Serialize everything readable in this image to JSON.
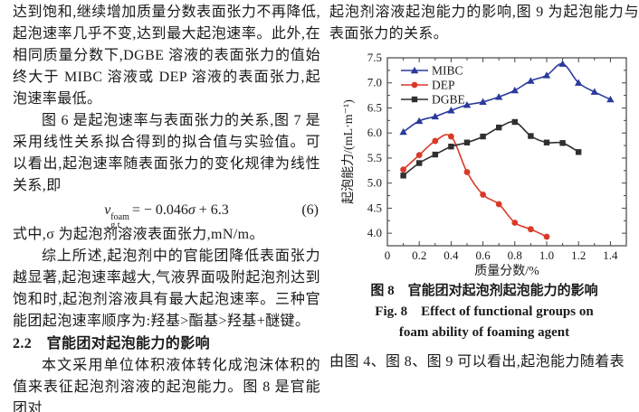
{
  "left": {
    "para1": "达到饱和,继续增加质量分数表面张力不再降低,起泡速率几乎不变,达到最大起泡速率。此外,在相同质量分数下,DGBE 溶液的表面张力的值始终大于 MIBC 溶液或 DEP 溶液的表面张力,起泡速率最低。",
    "para2": "图 6 是起泡速率与表面张力的关系,图 7 是采用线性关系拟合得到的拟合值与实验值。可以看出,起泡速率随表面张力的变化规律为线性关系,即",
    "eq": {
      "base": "v",
      "sup": "foam",
      "sub": "g,t",
      "mid": "= − 0.046",
      "sigma": "σ",
      "tail": " + 6.3",
      "number": "(6)"
    },
    "para3": "式中,σ 为起泡剂溶液表面张力,mN/m。",
    "para4": "综上所述,起泡剂中的官能团降低表面张力越显著,起泡速率越大,气液界面吸附起泡剂达到饱和时,起泡剂溶液具有最大起泡速率。三种官能团起泡速率顺序为:羟基>酯基>羟基+醚键。",
    "heading": "2.2　官能团对起泡能力的影响",
    "para5": "本文采用单位体积液体转化成泡沫体积的值来表征起泡剂溶液的起泡能力。图 8 是官能团对"
  },
  "right": {
    "para_top": "起泡剂溶液起泡能力的影响,图 9 为起泡能力与表面张力的关系。",
    "caption_cn": "图 8　官能团对起泡剂起泡能力的影响",
    "caption_en1": "Fig. 8　Effect of functional groups on",
    "caption_en2": "foam ability of foaming agent",
    "para_bottom": "由图 4、图 8、图 9 可以看出,起泡能力随着表"
  },
  "chart_data": {
    "type": "line",
    "title": "",
    "xlabel": "质量分数/%",
    "ylabel": "起泡能力/(mL·m⁻¹)",
    "xlim": [
      0,
      1.5
    ],
    "ylim": [
      3.75,
      7.5
    ],
    "x_ticks": [
      0,
      0.2,
      0.4,
      0.6,
      0.8,
      1.0,
      1.2,
      1.4
    ],
    "y_ticks": [
      4.0,
      4.5,
      5.0,
      5.5,
      6.0,
      6.5,
      7.0,
      7.5
    ],
    "x_minor_step": 0.1,
    "y_minor_step": 0.25,
    "grid": false,
    "legend_position": "top-left",
    "axis_color": "#444444",
    "series": [
      {
        "name": "MIBC",
        "color": "#2b3a9d",
        "marker": "triangle",
        "x": [
          0.1,
          0.2,
          0.3,
          0.4,
          0.5,
          0.6,
          0.7,
          0.8,
          0.9,
          1.0,
          1.1,
          1.2,
          1.3,
          1.4
        ],
        "y": [
          6.02,
          6.24,
          6.33,
          6.45,
          6.56,
          6.62,
          6.72,
          6.85,
          7.04,
          7.15,
          7.38,
          7.0,
          6.82,
          6.67
        ]
      },
      {
        "name": "DEP",
        "color": "#d93a28",
        "marker": "circle",
        "x": [
          0.1,
          0.2,
          0.3,
          0.4,
          0.5,
          0.6,
          0.7,
          0.8,
          0.9,
          1.0
        ],
        "y": [
          5.27,
          5.56,
          5.84,
          5.93,
          5.22,
          4.77,
          4.58,
          4.21,
          4.08,
          3.93
        ]
      },
      {
        "name": "DGBE",
        "color": "#2f2f2f",
        "marker": "square",
        "x": [
          0.1,
          0.2,
          0.3,
          0.4,
          0.5,
          0.6,
          0.7,
          0.8,
          0.9,
          1.0,
          1.1,
          1.2
        ],
        "y": [
          5.15,
          5.4,
          5.57,
          5.73,
          5.81,
          5.93,
          6.11,
          6.22,
          5.94,
          5.81,
          5.8,
          5.62
        ]
      }
    ]
  }
}
